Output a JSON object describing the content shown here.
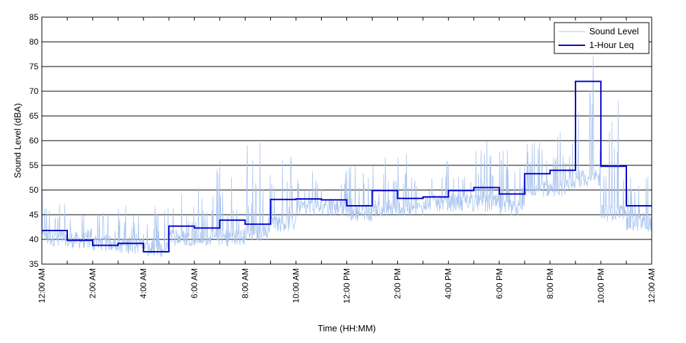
{
  "chart_data": {
    "type": "line",
    "title": "",
    "xlabel": "Time (HH:MM)",
    "ylabel": "Sound Level (dBA)",
    "ylim": [
      35,
      85
    ],
    "xlim_hours": [
      0,
      24
    ],
    "yticks": [
      35,
      40,
      45,
      50,
      55,
      60,
      65,
      70,
      75,
      80,
      85
    ],
    "xticks": [
      {
        "hour": 0,
        "label": "12:00 AM"
      },
      {
        "hour": 2,
        "label": "2:00 AM"
      },
      {
        "hour": 4,
        "label": "4:00 AM"
      },
      {
        "hour": 6,
        "label": "6:00 AM"
      },
      {
        "hour": 8,
        "label": "8:00 AM"
      },
      {
        "hour": 10,
        "label": "10:00 AM"
      },
      {
        "hour": 12,
        "label": "12:00 PM"
      },
      {
        "hour": 14,
        "label": "2:00 PM"
      },
      {
        "hour": 16,
        "label": "4:00 PM"
      },
      {
        "hour": 18,
        "label": "6:00 PM"
      },
      {
        "hour": 20,
        "label": "8:00 PM"
      },
      {
        "hour": 22,
        "label": "10:00 PM"
      },
      {
        "hour": 24,
        "label": "12:00 AM"
      }
    ],
    "grid": "horizontal",
    "legend_position": "top-right",
    "series": [
      {
        "name": "Sound Level",
        "color": "#a9c4f0",
        "style": "thin line",
        "hourly_base": [
          40,
          39.5,
          39,
          38.5,
          37.5,
          40,
          40,
          40,
          41,
          43,
          46,
          46,
          45,
          46,
          46,
          47,
          47,
          47,
          46,
          50,
          50,
          52,
          45,
          43
        ],
        "hourly_peak": [
          52,
          45,
          46,
          47,
          47,
          52,
          55,
          56,
          60,
          57,
          55,
          55,
          56,
          58,
          58,
          57,
          57,
          60,
          62,
          60,
          62,
          81,
          70,
          55
        ]
      },
      {
        "name": "1-Hour Leq",
        "color": "#0000cc",
        "style": "step",
        "x_hours": [
          0,
          1,
          2,
          3,
          4,
          5,
          6,
          7,
          8,
          9,
          10,
          11,
          12,
          13,
          14,
          15,
          16,
          17,
          18,
          19,
          20,
          21,
          22,
          23
        ],
        "values": [
          41.8,
          39.8,
          38.8,
          39.2,
          37.5,
          42.7,
          42.3,
          43.9,
          43.1,
          48.1,
          48.2,
          48.0,
          46.8,
          49.9,
          48.3,
          48.6,
          49.9,
          50.5,
          49.2,
          53.3,
          54.0,
          72.0,
          54.8,
          46.8
        ]
      }
    ]
  }
}
